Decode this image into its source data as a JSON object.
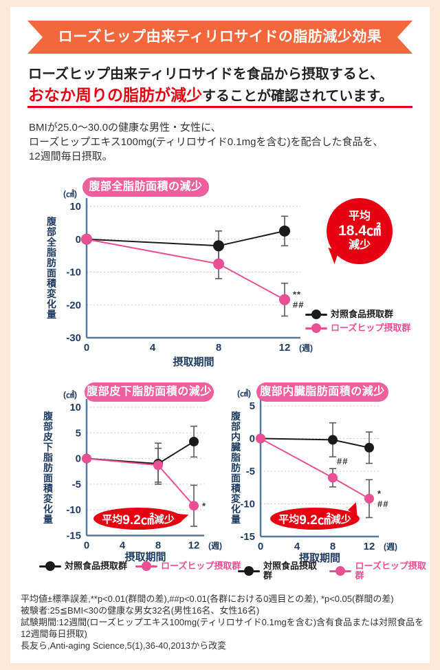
{
  "banner": {
    "title": "ローズヒップ由来ティリロサイドの脂肪減少効果"
  },
  "headline": {
    "line1": "ローズヒップ由来ティリロサイドを食品から摂取すると、",
    "highlight": "おなか周りの脂肪が減少",
    "line2_rest": "することが確認されています。"
  },
  "intro": {
    "text": "BMIが25.0〜30.0の健康な男性・女性に、\nローズヒップエキス100mg(ティリロサイド0.1mgを含む)を配合した食品を、\n12週間毎日摂取。"
  },
  "colors": {
    "accent_red": "#e60012",
    "banner_orange": "#f4673c",
    "rosehip_pink": "#e94f93",
    "control_black": "#1a1a1a",
    "axis_navy": "#1d3a5f",
    "axis_line": "#55799b",
    "background_peach": "#fce9d9"
  },
  "chart_data": [
    {
      "type": "line",
      "title": "腹部全脂肪面積の減少",
      "unit": "(㎠)",
      "ylabel": "腹部全脂肪面積変化量",
      "xlabel": "摂取期間",
      "x_unit": "(週)",
      "x_ticks": [
        0,
        4,
        8,
        12
      ],
      "ylim": [
        -30,
        10
      ],
      "yticks": [
        10,
        0,
        -10,
        -20,
        -30
      ],
      "grid": "dashed-horizontal",
      "series": [
        {
          "name": "対照食品摂取群",
          "color": "#1a1a1a",
          "weeks": [
            0,
            8,
            12
          ],
          "values": [
            0,
            -2,
            2.5
          ],
          "errors": [
            0,
            4.5,
            4.5
          ]
        },
        {
          "name": "ローズヒップ摂取群",
          "color": "#e94f93",
          "weeks": [
            0,
            8,
            12
          ],
          "values": [
            0,
            -7.5,
            -18.4
          ],
          "errors": [
            0,
            4.5,
            5
          ]
        }
      ],
      "annotations": [
        {
          "week": 12,
          "series": 1,
          "lines": [
            "**",
            "##"
          ],
          "placement": "right"
        }
      ],
      "callout": {
        "prefix": "平均",
        "value": "18.4㎠",
        "suffix": "減少"
      }
    },
    {
      "type": "line",
      "title": "腹部皮下脂肪面積の減少",
      "unit": "(㎠)",
      "ylabel": "腹部皮下脂肪面積変化量",
      "xlabel": "摂取期間",
      "x_unit": "(週)",
      "x_ticks": [
        0,
        4,
        8,
        12
      ],
      "ylim": [
        -15,
        10
      ],
      "yticks": [
        10,
        5,
        0,
        -5,
        -10,
        -15
      ],
      "grid": "dashed-horizontal",
      "series": [
        {
          "name": "対照食品摂取群",
          "color": "#1a1a1a",
          "weeks": [
            0,
            8,
            12
          ],
          "values": [
            0,
            -1,
            3.3
          ],
          "errors": [
            0,
            4,
            3
          ]
        },
        {
          "name": "ローズヒップ摂取群",
          "color": "#e94f93",
          "weeks": [
            0,
            8,
            12
          ],
          "values": [
            0,
            -1.3,
            -9.2
          ],
          "errors": [
            0,
            3.3,
            4
          ]
        }
      ],
      "annotations": [
        {
          "week": 12,
          "series": 1,
          "lines": [
            "*"
          ],
          "placement": "right"
        }
      ],
      "callout": {
        "prefix": "平均",
        "value": "9.2㎠",
        "suffix": "減少"
      }
    },
    {
      "type": "line",
      "title": "腹部内臓脂肪面積の減少",
      "unit": "(㎠)",
      "ylabel": "腹部内臓脂肪面積変化量",
      "xlabel": "摂取期間",
      "x_unit": "(週)",
      "x_ticks": [
        0,
        4,
        8,
        12
      ],
      "ylim": [
        -15,
        5
      ],
      "yticks": [
        5,
        0,
        -5,
        -10,
        -15
      ],
      "grid": "dashed-horizontal",
      "series": [
        {
          "name": "対照食品摂取群",
          "color": "#1a1a1a",
          "weeks": [
            0,
            8,
            12
          ],
          "values": [
            0,
            -0.2,
            -1.4
          ],
          "errors": [
            0,
            2.6,
            2.4
          ]
        },
        {
          "name": "ローズヒップ摂取群",
          "color": "#e94f93",
          "weeks": [
            0,
            8,
            12
          ],
          "values": [
            0,
            -6,
            -9.2
          ],
          "errors": [
            0,
            1.4,
            2.9
          ]
        }
      ],
      "annotations": [
        {
          "week": 8,
          "series": 1,
          "lines": [
            "##"
          ],
          "placement": "above-right"
        },
        {
          "week": 12,
          "series": 1,
          "lines": [
            "*",
            "##"
          ],
          "placement": "right"
        }
      ],
      "callout": {
        "prefix": "平均",
        "value": "9.2㎠",
        "suffix": "減少"
      }
    }
  ],
  "footnotes": {
    "text": "平均値±標準誤差,**p<0.01(群間の差),##p<0.01(各群における0週目との差), *p<0.05(群間の差)\n被験者:25≦BMI<30の健康な男女32名(男性16名、女性16名)\n試験期間:12週間(ローズヒップエキス100mg(ティリロサイド0.1mgを含む)含有食品または対照食品を\n12週間毎日摂取)\n長友ら,Anti-aging Science,5(1),36-40,2013から改変"
  }
}
